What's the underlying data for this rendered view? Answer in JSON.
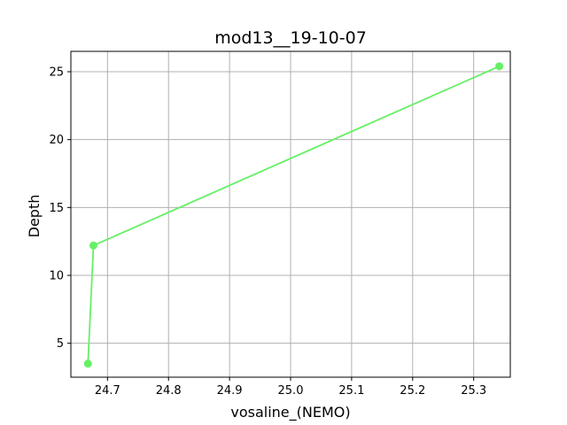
{
  "chart_data": {
    "type": "line",
    "title": "mod13__19-10-07",
    "xlabel": "vosaline_(NEMO)",
    "ylabel": "Depth",
    "xlim": [
      24.64,
      25.36
    ],
    "ylim": [
      2.5,
      26.5
    ],
    "xticks": [
      24.7,
      24.8,
      24.9,
      25.0,
      25.1,
      25.2,
      25.3
    ],
    "xtick_labels": [
      "24.7",
      "24.8",
      "24.9",
      "25.0",
      "25.1",
      "25.2",
      "25.3"
    ],
    "yticks": [
      5,
      10,
      15,
      20,
      25
    ],
    "ytick_labels": [
      "5",
      "10",
      "15",
      "20",
      "25"
    ],
    "grid": true,
    "series": [
      {
        "color": "#66f066",
        "marker": "circle",
        "points": [
          {
            "x": 24.668,
            "y": 3.5
          },
          {
            "x": 24.677,
            "y": 12.2
          },
          {
            "x": 25.342,
            "y": 25.4
          }
        ]
      }
    ]
  }
}
